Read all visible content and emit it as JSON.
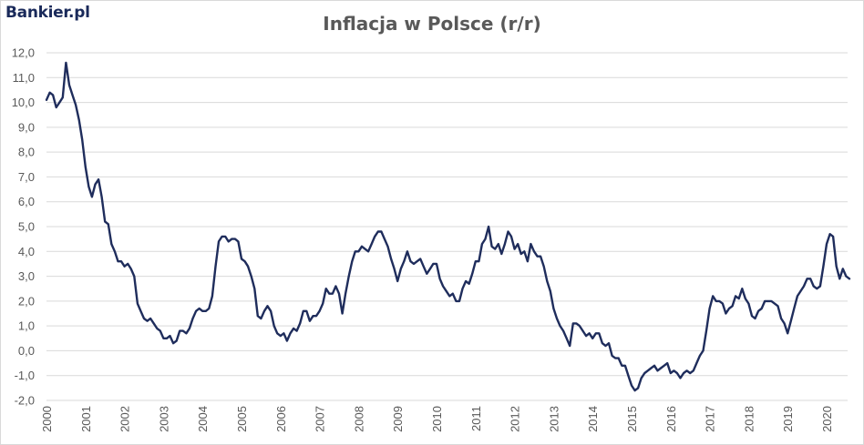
{
  "logo": "Bankier.pl",
  "chart_data": {
    "type": "line",
    "title": "Inflacja w Polsce (r/r)",
    "xlabel": "",
    "ylabel": "",
    "ylim": [
      -2.0,
      12.0
    ],
    "y_ticks": [
      "12,0",
      "11,0",
      "10,0",
      "9,0",
      "8,0",
      "7,0",
      "6,0",
      "5,0",
      "4,0",
      "3,0",
      "2,0",
      "1,0",
      "0,0",
      "-1,0",
      "-2,0"
    ],
    "x_ticks": [
      "2000",
      "2001",
      "2002",
      "2003",
      "2004",
      "2005",
      "2006",
      "2007",
      "2008",
      "2009",
      "2010",
      "2011",
      "2012",
      "2013",
      "2014",
      "2015",
      "2016",
      "2017",
      "2018",
      "2019",
      "2020"
    ],
    "grid": "horizontal",
    "line_color": "#1f2d5c",
    "series": [
      {
        "start": "2000-01",
        "frequency": "monthly",
        "values": [
          10.1,
          10.4,
          10.3,
          9.8,
          10.0,
          10.2,
          11.6,
          10.7,
          10.3,
          9.9,
          9.3,
          8.5,
          7.4,
          6.6,
          6.2,
          6.7,
          6.9,
          6.2,
          5.2,
          5.1,
          4.3,
          4.0,
          3.6,
          3.6,
          3.4,
          3.5,
          3.3,
          3.0,
          1.9,
          1.6,
          1.3,
          1.2,
          1.3,
          1.1,
          0.9,
          0.8,
          0.5,
          0.5,
          0.6,
          0.3,
          0.4,
          0.8,
          0.8,
          0.7,
          0.9,
          1.3,
          1.6,
          1.7,
          1.6,
          1.6,
          1.7,
          2.2,
          3.4,
          4.4,
          4.6,
          4.6,
          4.4,
          4.5,
          4.5,
          4.4,
          3.7,
          3.6,
          3.4,
          3.0,
          2.5,
          1.4,
          1.3,
          1.6,
          1.8,
          1.6,
          1.0,
          0.7,
          0.6,
          0.7,
          0.4,
          0.7,
          0.9,
          0.8,
          1.1,
          1.6,
          1.6,
          1.2,
          1.4,
          1.4,
          1.6,
          1.9,
          2.5,
          2.3,
          2.3,
          2.6,
          2.3,
          1.5,
          2.3,
          3.0,
          3.6,
          4.0,
          4.0,
          4.2,
          4.1,
          4.0,
          4.3,
          4.6,
          4.8,
          4.8,
          4.5,
          4.2,
          3.7,
          3.3,
          2.8,
          3.3,
          3.6,
          4.0,
          3.6,
          3.5,
          3.6,
          3.7,
          3.4,
          3.1,
          3.3,
          3.5,
          3.5,
          2.9,
          2.6,
          2.4,
          2.2,
          2.3,
          2.0,
          2.0,
          2.5,
          2.8,
          2.7,
          3.1,
          3.6,
          3.6,
          4.3,
          4.5,
          5.0,
          4.2,
          4.1,
          4.3,
          3.9,
          4.3,
          4.8,
          4.6,
          4.1,
          4.3,
          3.9,
          4.0,
          3.6,
          4.3,
          4.0,
          3.8,
          3.8,
          3.4,
          2.8,
          2.4,
          1.7,
          1.3,
          1.0,
          0.8,
          0.5,
          0.2,
          1.1,
          1.1,
          1.0,
          0.8,
          0.6,
          0.7,
          0.5,
          0.7,
          0.7,
          0.3,
          0.2,
          0.3,
          -0.2,
          -0.3,
          -0.3,
          -0.6,
          -0.6,
          -1.0,
          -1.4,
          -1.6,
          -1.5,
          -1.1,
          -0.9,
          -0.8,
          -0.7,
          -0.6,
          -0.8,
          -0.7,
          -0.6,
          -0.5,
          -0.9,
          -0.8,
          -0.9,
          -1.1,
          -0.9,
          -0.8,
          -0.9,
          -0.8,
          -0.5,
          -0.2,
          0.0,
          0.8,
          1.7,
          2.2,
          2.0,
          2.0,
          1.9,
          1.5,
          1.7,
          1.8,
          2.2,
          2.1,
          2.5,
          2.1,
          1.9,
          1.4,
          1.3,
          1.6,
          1.7,
          2.0,
          2.0,
          2.0,
          1.9,
          1.8,
          1.3,
          1.1,
          0.7,
          1.2,
          1.7,
          2.2,
          2.4,
          2.6,
          2.9,
          2.9,
          2.6,
          2.5,
          2.6,
          3.4,
          4.3,
          4.7,
          4.6,
          3.4,
          2.9,
          3.3,
          3.0,
          2.9
        ]
      }
    ]
  }
}
